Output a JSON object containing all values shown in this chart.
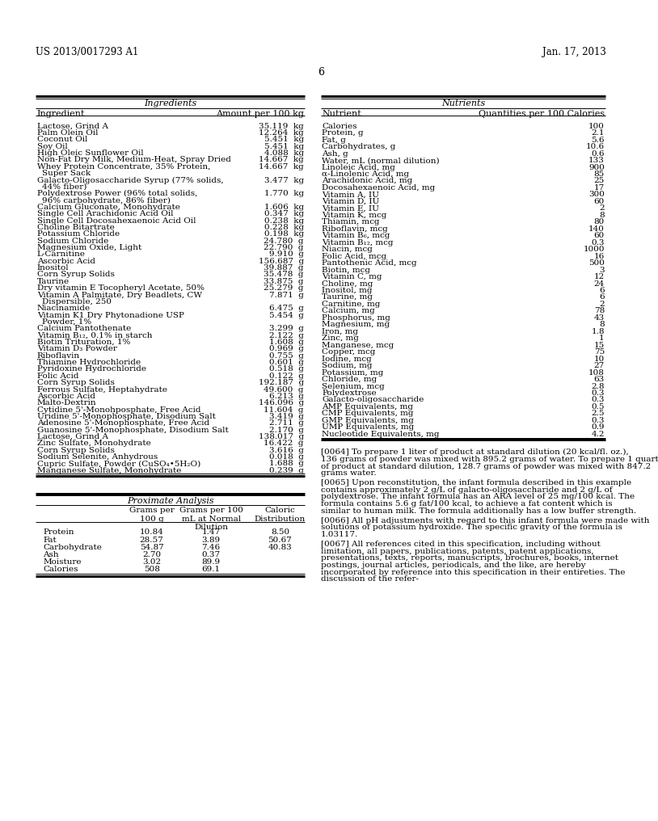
{
  "header_left": "US 2013/0017293 A1",
  "header_right": "Jan. 17, 2013",
  "page_number": "6",
  "bg_color": "#ffffff",
  "text_color": "#000000",
  "ingredients_title": "Ingredients",
  "ingredients_col1": "Ingredient",
  "ingredients_col2": "Amount per 100 kg",
  "ingredients": [
    [
      "Lactose, Grind A",
      "35.119  kg"
    ],
    [
      "Palm Olein Oil",
      "12.264  kg"
    ],
    [
      "Coconut Oil",
      "5.451  kg"
    ],
    [
      "Soy Oil",
      "5.451  kg"
    ],
    [
      "High Oleic Sunflower Oil",
      "4.088  kg"
    ],
    [
      "Non-Fat Dry Milk, Medium-Heat, Spray Dried",
      "14.667  kg"
    ],
    [
      "Whey Protein Concentrate, 35% Protein,",
      "14.667  kg"
    ],
    [
      "Super Sack",
      ""
    ],
    [
      "Galacto-Oligosaccharide Syrup (77% solids,",
      "3.477  kg"
    ],
    [
      "44% fiber)",
      ""
    ],
    [
      "Polydextrose Power (96% total solids,",
      "1.770  kg"
    ],
    [
      "96% carbohydrate, 86% fiber)",
      ""
    ],
    [
      "Calcium Gluconate, Monohydrate",
      "1.606  kg"
    ],
    [
      "Single Cell Arachidonic Acid Oil",
      "0.347  kg"
    ],
    [
      "Single Cell Docosahexaenoic Acid Oil",
      "0.238  kg"
    ],
    [
      "Choline Bitartrate",
      "0.228  kg"
    ],
    [
      "Potassium Chloride",
      "0.198  kg"
    ],
    [
      "Sodium Chloride",
      "24.780  g"
    ],
    [
      "Magnesium Oxide, Light",
      "22.790  g"
    ],
    [
      "L-Carnitine",
      "9.910  g"
    ],
    [
      "Ascorbic Acid",
      "156.687  g"
    ],
    [
      "Inositol",
      "39.887  g"
    ],
    [
      "Corn Syrup Solids",
      "35.478  g"
    ],
    [
      "Taurine",
      "33.875  g"
    ],
    [
      "Dry vitamin E Tocopheryl Acetate, 50%",
      "25.279  g"
    ],
    [
      "Vitamin A Palmitate, Dry Beadlets, CW",
      "7.871  g"
    ],
    [
      "Dispersible, 250",
      ""
    ],
    [
      "Niacinamide",
      "6.475  g"
    ],
    [
      "Vitamin K1 Dry Phytonadione USP",
      "5.454  g"
    ],
    [
      "Powder, 1%",
      ""
    ],
    [
      "Calcium Pantothenate",
      "3.299  g"
    ],
    [
      "Vitamin B₁₂, 0.1% in starch",
      "2.122  g"
    ],
    [
      "Biotin Trituration, 1%",
      "1.608  g"
    ],
    [
      "Vitamin D₃ Powder",
      "0.969  g"
    ],
    [
      "Riboflavin",
      "0.755  g"
    ],
    [
      "Thiamine Hydrochloride",
      "0.601  g"
    ],
    [
      "Pyridoxine Hydrochloride",
      "0.518  g"
    ],
    [
      "Folic Acid",
      "0.122  g"
    ],
    [
      "Corn Syrup Solids",
      "192.187  g"
    ],
    [
      "Ferrous Sulfate, Heptahydrate",
      "49.600  g"
    ],
    [
      "Ascorbic Acid",
      "6.213  g"
    ],
    [
      "Malto-Dextrin",
      "146.096  g"
    ],
    [
      "Cytidine 5'-Monohposphate, Free Acid",
      "11.604  g"
    ],
    [
      "Uridine 5'-Monophosphate, Disodium Salt",
      "3.419  g"
    ],
    [
      "Adenosine 5'-Monophosphate, Free Acid",
      "2.711  g"
    ],
    [
      "Guanosine 5'-Monophosphate, Disodium Salt",
      "2.170  g"
    ],
    [
      "Lactose, Grind A",
      "138.017  g"
    ],
    [
      "Zinc Sulfate, Monohydrate",
      "16.422  g"
    ],
    [
      "Corn Syrup Solids",
      "3.616  g"
    ],
    [
      "Sodium Selenite, Anhydrous",
      "0.018  g"
    ],
    [
      "Cupric Sulfate, Powder (CuSO₄•5H₂O)",
      "1.688  g"
    ],
    [
      "Manganese Sulfate, Monohydrate",
      "0.239  g"
    ]
  ],
  "nutrients_title": "Nutrients",
  "nutrients_col1": "Nutrient",
  "nutrients_col2": "Quantities per 100 Calories",
  "nutrients": [
    [
      "Calories",
      "100"
    ],
    [
      "Protein, g",
      "2.1"
    ],
    [
      "Fat, g",
      "5.6"
    ],
    [
      "Carbohydrates, g",
      "10.6"
    ],
    [
      "Ash, g",
      "0.6"
    ],
    [
      "Water, mL (normal dilution)",
      "133"
    ],
    [
      "Linoleic Acid, mg",
      "900"
    ],
    [
      "α-Linolenic Acid, mg",
      "85"
    ],
    [
      "Arachidonic Acid, mg",
      "25"
    ],
    [
      "Docosahexaenoic Acid, mg",
      "17"
    ],
    [
      "Vitamin A, IU",
      "300"
    ],
    [
      "Vitamin D, IU",
      "60"
    ],
    [
      "Vitamin E, IU",
      "2"
    ],
    [
      "Vitamin K, mcg",
      "8"
    ],
    [
      "Thiamin, mcg",
      "80"
    ],
    [
      "Riboflavin, mcg",
      "140"
    ],
    [
      "Vitamin B₆, mcg",
      "60"
    ],
    [
      "Vitamin B₁₂, mcg",
      "0.3"
    ],
    [
      "Niacin, mcg",
      "1000"
    ],
    [
      "Folic Acid, mcg",
      "16"
    ],
    [
      "Pantothenic Acid, mcg",
      "500"
    ],
    [
      "Biotin, mcg",
      "3"
    ],
    [
      "Vitamin C, mg",
      "12"
    ],
    [
      "Choline, mg",
      "24"
    ],
    [
      "Inositol, mg",
      "6"
    ],
    [
      "Taurine, mg",
      "6"
    ],
    [
      "Carnitine, mg",
      "2"
    ],
    [
      "Calcium, mg",
      "78"
    ],
    [
      "Phosphorus, mg",
      "43"
    ],
    [
      "Magnesium, mg",
      "8"
    ],
    [
      "Iron, mg",
      "1.8"
    ],
    [
      "Zinc, mg",
      "1"
    ],
    [
      "Manganese, mcg",
      "15"
    ],
    [
      "Copper, mcg",
      "75"
    ],
    [
      "Iodine, mcg",
      "10"
    ],
    [
      "Sodium, mg",
      "27"
    ],
    [
      "Potassium, mg",
      "108"
    ],
    [
      "Chloride, mg",
      "63"
    ],
    [
      "Selenium, mcg",
      "2.8"
    ],
    [
      "Polydextrose",
      "0.3"
    ],
    [
      "Galacto-oligosaccharide",
      "0.3"
    ],
    [
      "AMP Equivalents, mg",
      "0.5"
    ],
    [
      "CMP Equivalents, mg",
      "2.5"
    ],
    [
      "GMP Equivalents, mg",
      "0.3"
    ],
    [
      "UMP Equivalents, mg",
      "0.9"
    ],
    [
      "Nucleotide Equivalents, mg",
      "4.2"
    ]
  ],
  "proximate_title": "Proximate Analysis",
  "proximate_rows": [
    [
      "Protein",
      "10.84",
      "1.47",
      "8.50"
    ],
    [
      "Fat",
      "28.57",
      "3.89",
      "50.67"
    ],
    [
      "Carbohydrate",
      "54.87",
      "7.46",
      "40.83"
    ],
    [
      "Ash",
      "2.70",
      "0.37",
      ""
    ],
    [
      "Moisture",
      "3.02",
      "89.9",
      ""
    ],
    [
      "Calories",
      "508",
      "69.1",
      ""
    ]
  ],
  "paragraph_0064": "[0064]   To prepare 1 liter of product at standard dilution (20 kcal/fl. oz.), 136 grams of powder was mixed with 895.2 grams of water. To prepare 1 quart of product at standard dilution, 128.7 grams of powder was mixed with 847.2 grams water.",
  "paragraph_0065": "[0065]   Upon reconstitution, the infant formula described in this example contains approximately 2 g/L of galacto-oligosaccharide and 2 g/L of polydextrose. The infant formula has an ARA level of 25 mg/100 kcal. The formula contains 5.6 g fat/100 kcal, to achieve a fat content which is similar to human milk. The formula additionally has a low buffer strength.",
  "paragraph_0066": "[0066]   All pH adjustments with regard to this infant formula were made with solutions of potassium hydroxide. The specific gravity of the formula is 1.03117.",
  "paragraph_0067": "[0067]   All references cited in this specification, including without limitation, all papers, publications, patents, patent applications, presentations, texts, reports, manuscripts, brochures, books, internet postings, journal articles, periodicals, and the like, are hereby incorporated by reference into this specification in their entireties. The discussion of the refer-"
}
